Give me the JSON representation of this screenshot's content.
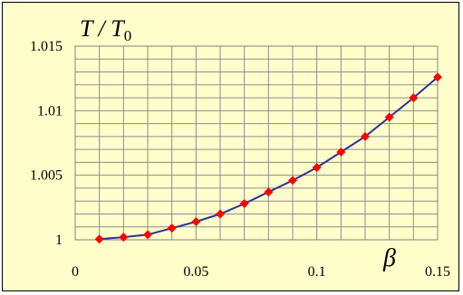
{
  "chart_data": {
    "type": "line",
    "title": "",
    "xlabel": "β",
    "ylabel": "T / T",
    "ylabel_subscript": "0",
    "xlim": [
      0,
      0.15
    ],
    "ylim": [
      1,
      1.015
    ],
    "x_ticks": [
      0,
      0.05,
      0.1,
      0.15
    ],
    "x_tick_labels": [
      "0",
      "0.05",
      "0.1",
      "0.15"
    ],
    "y_ticks": [
      1,
      1.005,
      1.01,
      1.015
    ],
    "y_tick_labels": [
      "1",
      "1.005",
      "1.01",
      "1.015"
    ],
    "grid": true,
    "legend": "none",
    "series": [
      {
        "x": [
          0.01,
          0.02,
          0.03,
          0.04,
          0.05,
          0.06,
          0.07,
          0.08,
          0.09,
          0.1,
          0.11,
          0.12,
          0.13,
          0.14,
          0.15
        ],
        "y": [
          1.00005,
          1.0002,
          1.0004,
          1.0009,
          1.0014,
          1.002,
          1.0028,
          1.0037,
          1.0046,
          1.0056,
          1.0068,
          1.008,
          1.0095,
          1.011,
          1.0126
        ],
        "line_color": "#2E3192",
        "marker_color": "#FF0000",
        "marker": "diamond"
      }
    ]
  }
}
